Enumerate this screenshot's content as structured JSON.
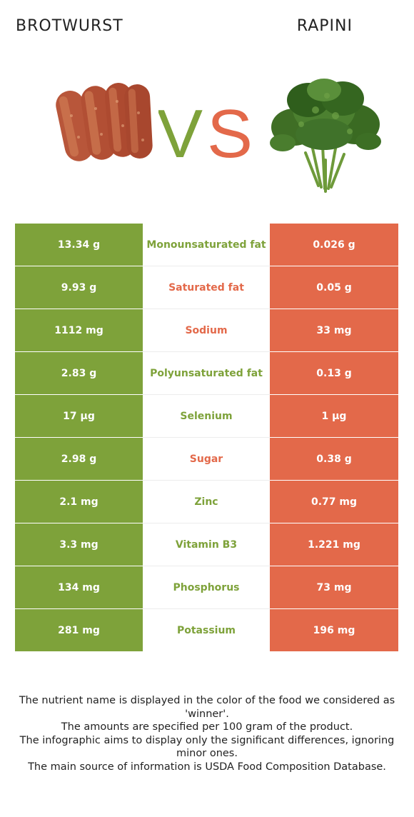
{
  "left_food": {
    "name": "BROTWURST",
    "color": "#7ea23a",
    "image": "brotwurst-sausages"
  },
  "right_food": {
    "name": "RAPINI",
    "color": "#e3694a",
    "image": "rapini-bunch"
  },
  "vs": {
    "left_letter": "V",
    "right_letter": "S"
  },
  "colors": {
    "winner_left": "#7ea23a",
    "winner_right": "#e3694a"
  },
  "rows": [
    {
      "left": "13.34 g",
      "name": "Monounsaturated fat",
      "right": "0.026 g",
      "winner": "left"
    },
    {
      "left": "9.93 g",
      "name": "Saturated fat",
      "right": "0.05 g",
      "winner": "right"
    },
    {
      "left": "1112 mg",
      "name": "Sodium",
      "right": "33 mg",
      "winner": "right"
    },
    {
      "left": "2.83 g",
      "name": "Polyunsaturated fat",
      "right": "0.13 g",
      "winner": "left"
    },
    {
      "left": "17 µg",
      "name": "Selenium",
      "right": "1 µg",
      "winner": "left"
    },
    {
      "left": "2.98 g",
      "name": "Sugar",
      "right": "0.38 g",
      "winner": "right"
    },
    {
      "left": "2.1 mg",
      "name": "Zinc",
      "right": "0.77 mg",
      "winner": "left"
    },
    {
      "left": "3.3 mg",
      "name": "Vitamin B3",
      "right": "1.221 mg",
      "winner": "left"
    },
    {
      "left": "134 mg",
      "name": "Phosphorus",
      "right": "73 mg",
      "winner": "left"
    },
    {
      "left": "281 mg",
      "name": "Potassium",
      "right": "196 mg",
      "winner": "left"
    }
  ],
  "footnote": [
    "The nutrient name is displayed in the color of the food we considered as 'winner'.",
    "The amounts are specified per 100 gram of the product.",
    "The infographic aims to display only the significant differences, ignoring minor ones.",
    "The main source of information is USDA Food Composition Database."
  ]
}
